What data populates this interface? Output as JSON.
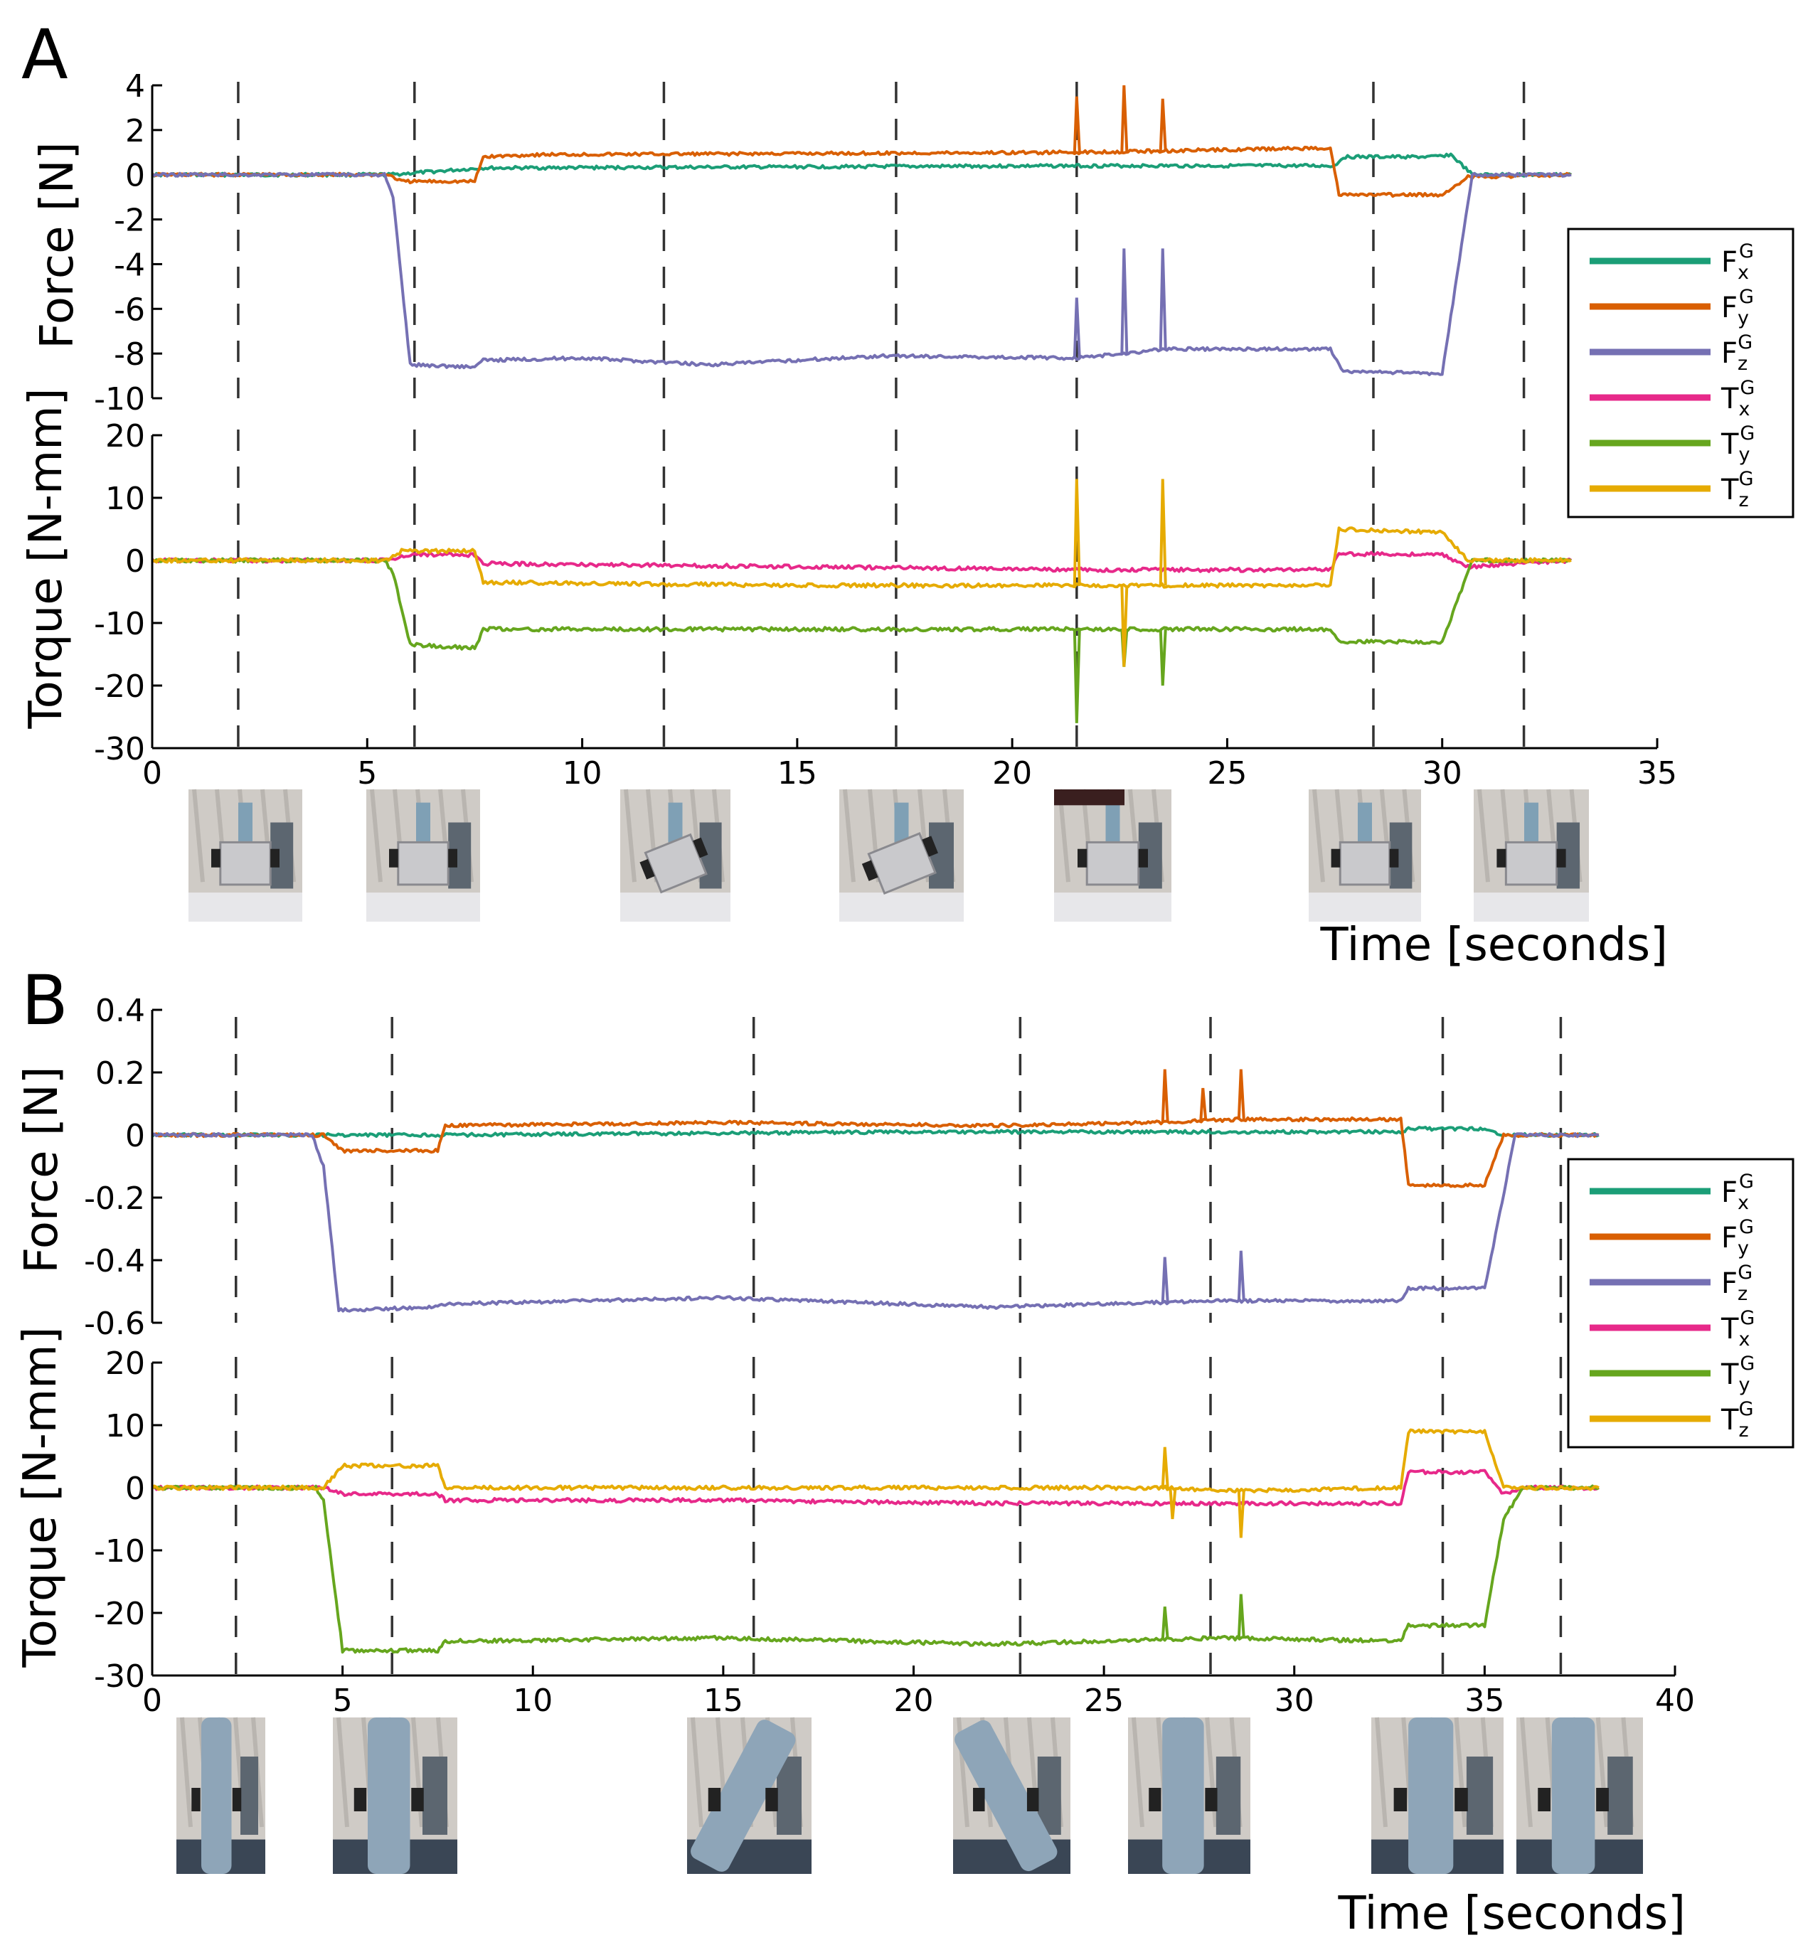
{
  "legend_entries": [
    {
      "base": "F",
      "sub": "x",
      "sup": "G",
      "color": "#1b9e77"
    },
    {
      "base": "F",
      "sub": "y",
      "sup": "G",
      "color": "#d95f02"
    },
    {
      "base": "F",
      "sub": "z",
      "sup": "G",
      "color": "#7570b3"
    },
    {
      "base": "T",
      "sub": "x",
      "sup": "G",
      "color": "#e7298a"
    },
    {
      "base": "T",
      "sub": "y",
      "sup": "G",
      "color": "#66a61e"
    },
    {
      "base": "T",
      "sub": "z",
      "sup": "G",
      "color": "#e6ab02"
    }
  ],
  "thumbnail_scenes": {
    "A": [
      "cube-upright",
      "cube-upright",
      "cube-tilted",
      "cube-tilted",
      "cube-pushed",
      "cube-upright",
      "cube-upright"
    ],
    "B": [
      "cylinder-upright",
      "cylinder-upright",
      "cylinder-tilted-left",
      "cylinder-tilted-right",
      "cylinder-upright-closeup",
      "cylinder-upright",
      "cylinder-upright"
    ]
  },
  "chart_data": [
    {
      "panel_label": "A",
      "type": "line",
      "xlabel": "Time [seconds]",
      "xlim": [
        0,
        35
      ],
      "xticks": [
        "0",
        "5",
        "10",
        "15",
        "20",
        "25",
        "30",
        "35"
      ],
      "phase_markers_x": [
        2.0,
        6.1,
        11.9,
        17.3,
        21.5,
        28.4,
        31.9
      ],
      "force": {
        "ylabel": "Force [N]",
        "ylim": [
          -10,
          4
        ],
        "yticks": [
          "4",
          "2",
          "0",
          "-2",
          "-4",
          "-6",
          "-8",
          "-10"
        ],
        "series": [
          {
            "name": "Fx^G",
            "color": "#1b9e77",
            "points": [
              [
                0,
                0
              ],
              [
                5.5,
                0
              ],
              [
                7.7,
                0.3
              ],
              [
                21.5,
                0.4
              ],
              [
                27.5,
                0.4
              ],
              [
                27.7,
                0.8
              ],
              [
                29.8,
                0.8
              ],
              [
                30.2,
                0.9
              ],
              [
                30.7,
                0
              ],
              [
                33,
                0
              ]
            ],
            "spikes": []
          },
          {
            "name": "Fy^G",
            "color": "#d95f02",
            "points": [
              [
                0,
                0
              ],
              [
                5.5,
                0
              ],
              [
                5.8,
                -0.3
              ],
              [
                7.5,
                -0.3
              ],
              [
                7.7,
                0.8
              ],
              [
                9,
                0.9
              ],
              [
                21.5,
                1.0
              ],
              [
                27.4,
                1.2
              ],
              [
                27.6,
                -0.9
              ],
              [
                30.0,
                -0.9
              ],
              [
                30.6,
                -0.1
              ],
              [
                33,
                0
              ]
            ],
            "spikes": [
              [
                21.5,
                3.5
              ],
              [
                22.6,
                4.0
              ],
              [
                23.5,
                3.4
              ]
            ]
          },
          {
            "name": "Fz^G",
            "color": "#7570b3",
            "points": [
              [
                0,
                0
              ],
              [
                5.4,
                0
              ],
              [
                5.6,
                -1
              ],
              [
                6.0,
                -8.5
              ],
              [
                7.5,
                -8.6
              ],
              [
                7.7,
                -8.3
              ],
              [
                10,
                -8.2
              ],
              [
                13,
                -8.5
              ],
              [
                17,
                -8.1
              ],
              [
                21.5,
                -8.2
              ],
              [
                22.6,
                -8.0
              ],
              [
                23.5,
                -7.8
              ],
              [
                27.4,
                -7.8
              ],
              [
                27.7,
                -8.8
              ],
              [
                30.0,
                -8.9
              ],
              [
                30.7,
                0
              ],
              [
                33,
                0
              ]
            ],
            "spikes": [
              [
                21.5,
                -5.5
              ],
              [
                22.6,
                -3.3
              ],
              [
                23.5,
                -3.3
              ]
            ]
          }
        ]
      },
      "torque": {
        "ylabel": "Torque [N-mm]",
        "ylim": [
          -30,
          20
        ],
        "yticks": [
          "20",
          "10",
          "0",
          "-10",
          "-20",
          "-30"
        ],
        "series": [
          {
            "name": "Tx^G",
            "color": "#e7298a",
            "points": [
              [
                0,
                0
              ],
              [
                5.5,
                0
              ],
              [
                6.0,
                1.0
              ],
              [
                7.5,
                0.8
              ],
              [
                7.7,
                -0.5
              ],
              [
                15,
                -1.0
              ],
              [
                21.5,
                -1.5
              ],
              [
                27.4,
                -1.5
              ],
              [
                27.6,
                1.0
              ],
              [
                30.0,
                1.0
              ],
              [
                30.6,
                -1.0
              ],
              [
                33,
                0
              ]
            ],
            "spikes": []
          },
          {
            "name": "Ty^G",
            "color": "#66a61e",
            "points": [
              [
                0,
                0
              ],
              [
                5.4,
                0
              ],
              [
                5.6,
                -2
              ],
              [
                6.0,
                -13.5
              ],
              [
                7.5,
                -14
              ],
              [
                7.7,
                -11
              ],
              [
                15,
                -11
              ],
              [
                21.5,
                -11
              ],
              [
                27.4,
                -11
              ],
              [
                27.6,
                -13
              ],
              [
                30.0,
                -13
              ],
              [
                30.7,
                0
              ],
              [
                33,
                0
              ]
            ],
            "spikes": [
              [
                21.5,
                -26
              ],
              [
                22.6,
                -17
              ],
              [
                23.5,
                -20
              ]
            ]
          },
          {
            "name": "Tz^G",
            "color": "#e6ab02",
            "points": [
              [
                0,
                0
              ],
              [
                5.5,
                0
              ],
              [
                5.8,
                1.5
              ],
              [
                7.5,
                1.5
              ],
              [
                7.7,
                -3.5
              ],
              [
                15,
                -4
              ],
              [
                21.5,
                -4
              ],
              [
                27.4,
                -4
              ],
              [
                27.6,
                5
              ],
              [
                30.0,
                4.5
              ],
              [
                30.6,
                0
              ],
              [
                33,
                0
              ]
            ],
            "spikes": [
              [
                21.5,
                13
              ],
              [
                22.6,
                -17
              ],
              [
                23.5,
                13
              ]
            ]
          }
        ]
      }
    },
    {
      "panel_label": "B",
      "type": "line",
      "xlabel": "Time [seconds]",
      "xlim": [
        0,
        40
      ],
      "xticks": [
        "0",
        "5",
        "10",
        "15",
        "20",
        "25",
        "30",
        "35",
        "40"
      ],
      "phase_markers_x": [
        2.2,
        6.3,
        15.8,
        22.8,
        27.8,
        33.9,
        37.0
      ],
      "force": {
        "ylabel": "Force [N]",
        "ylim": [
          -0.6,
          0.4
        ],
        "yticks": [
          "0.4",
          "0.2",
          "0",
          "-0.2",
          "-0.4",
          "-0.6"
        ],
        "series": [
          {
            "name": "Fx^G",
            "color": "#1b9e77",
            "points": [
              [
                0,
                0
              ],
              [
                4.5,
                0
              ],
              [
                7.5,
                0
              ],
              [
                20,
                0.01
              ],
              [
                32.8,
                0.01
              ],
              [
                33.0,
                0.02
              ],
              [
                35.0,
                0.02
              ],
              [
                35.5,
                0
              ],
              [
                38,
                0
              ]
            ],
            "spikes": []
          },
          {
            "name": "Fy^G",
            "color": "#d95f02",
            "points": [
              [
                0,
                0
              ],
              [
                4.5,
                0
              ],
              [
                5.0,
                -0.05
              ],
              [
                7.5,
                -0.05
              ],
              [
                7.7,
                0.03
              ],
              [
                15,
                0.04
              ],
              [
                22,
                0.03
              ],
              [
                26.5,
                0.04
              ],
              [
                28.5,
                0.05
              ],
              [
                32.8,
                0.05
              ],
              [
                33.0,
                -0.16
              ],
              [
                35.0,
                -0.16
              ],
              [
                35.5,
                0
              ],
              [
                38,
                0
              ]
            ],
            "spikes": [
              [
                26.6,
                0.21
              ],
              [
                27.6,
                0.15
              ],
              [
                28.6,
                0.21
              ]
            ]
          },
          {
            "name": "Fz^G",
            "color": "#7570b3",
            "points": [
              [
                0,
                0
              ],
              [
                4.2,
                0
              ],
              [
                4.5,
                -0.1
              ],
              [
                4.9,
                -0.56
              ],
              [
                7.5,
                -0.55
              ],
              [
                7.7,
                -0.54
              ],
              [
                15,
                -0.52
              ],
              [
                22,
                -0.55
              ],
              [
                28,
                -0.53
              ],
              [
                32.8,
                -0.53
              ],
              [
                33.0,
                -0.49
              ],
              [
                35.0,
                -0.49
              ],
              [
                35.4,
                -0.25
              ],
              [
                35.8,
                0
              ],
              [
                38,
                0
              ]
            ],
            "spikes": [
              [
                26.6,
                -0.39
              ],
              [
                28.6,
                -0.37
              ]
            ]
          }
        ]
      },
      "torque": {
        "ylabel": "Torque [N-mm]",
        "ylim": [
          -30,
          20
        ],
        "yticks": [
          "20",
          "10",
          "0",
          "-10",
          "-20",
          "-30"
        ],
        "series": [
          {
            "name": "Tx^G",
            "color": "#e7298a",
            "points": [
              [
                0,
                0
              ],
              [
                4.5,
                0
              ],
              [
                5.0,
                -1.0
              ],
              [
                7.5,
                -1.0
              ],
              [
                7.7,
                -2.0
              ],
              [
                15,
                -2.0
              ],
              [
                22,
                -2.5
              ],
              [
                32.8,
                -2.5
              ],
              [
                33.0,
                2.5
              ],
              [
                35.0,
                2.5
              ],
              [
                35.5,
                -1.0
              ],
              [
                36,
                0
              ],
              [
                38,
                0
              ]
            ],
            "spikes": []
          },
          {
            "name": "Ty^G",
            "color": "#66a61e",
            "points": [
              [
                0,
                0
              ],
              [
                4.3,
                0
              ],
              [
                4.5,
                -2
              ],
              [
                5.0,
                -26
              ],
              [
                7.5,
                -26
              ],
              [
                7.7,
                -24.5
              ],
              [
                15,
                -24
              ],
              [
                22,
                -25
              ],
              [
                28,
                -24
              ],
              [
                32.8,
                -24.5
              ],
              [
                33.0,
                -22
              ],
              [
                35.0,
                -22
              ],
              [
                35.5,
                -5
              ],
              [
                36,
                0
              ],
              [
                38,
                0
              ]
            ],
            "spikes": [
              [
                26.6,
                -19
              ],
              [
                28.6,
                -17
              ]
            ]
          },
          {
            "name": "Tz^G",
            "color": "#e6ab02",
            "points": [
              [
                0,
                0
              ],
              [
                4.5,
                0
              ],
              [
                5.0,
                3.5
              ],
              [
                7.5,
                3.5
              ],
              [
                7.7,
                0
              ],
              [
                26.5,
                0
              ],
              [
                28.5,
                -0.5
              ],
              [
                32.8,
                0
              ],
              [
                33.0,
                9
              ],
              [
                35.0,
                9
              ],
              [
                35.5,
                0
              ],
              [
                38,
                0
              ]
            ],
            "spikes": [
              [
                26.6,
                6.5
              ],
              [
                26.8,
                -5
              ],
              [
                28.6,
                -8
              ]
            ]
          }
        ]
      }
    }
  ]
}
